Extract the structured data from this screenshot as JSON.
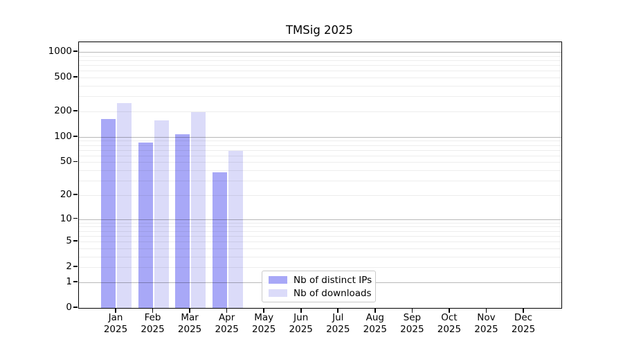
{
  "chart_data": {
    "type": "bar",
    "title": "TMSig 2025",
    "categories": [
      "Jan",
      "Feb",
      "Mar",
      "Apr",
      "May",
      "Jun",
      "Jul",
      "Aug",
      "Sep",
      "Oct",
      "Nov",
      "Dec"
    ],
    "year_label": "2025",
    "series": [
      {
        "name": "Nb of distinct IPs",
        "color": "#a8a8f7",
        "values": [
          163,
          85,
          107,
          38,
          0,
          0,
          0,
          0,
          0,
          0,
          0,
          0
        ]
      },
      {
        "name": "Nb of downloads",
        "color": "#dbdbf9",
        "values": [
          250,
          158,
          196,
          68,
          0,
          0,
          0,
          0,
          0,
          0,
          0,
          0
        ]
      }
    ],
    "y_ticks": [
      1000,
      500,
      200,
      100,
      50,
      20,
      10,
      5,
      2,
      1,
      0
    ],
    "y_scale": "log1p",
    "ylim": [
      0,
      1300
    ],
    "xlabel": "",
    "ylabel": "",
    "grid": "both",
    "legend_position": "lower center",
    "colors": {
      "spine": "#000000",
      "major_grid": "#b3b3b3",
      "minor_grid": "#ebebeb",
      "background": "#ffffff"
    }
  }
}
